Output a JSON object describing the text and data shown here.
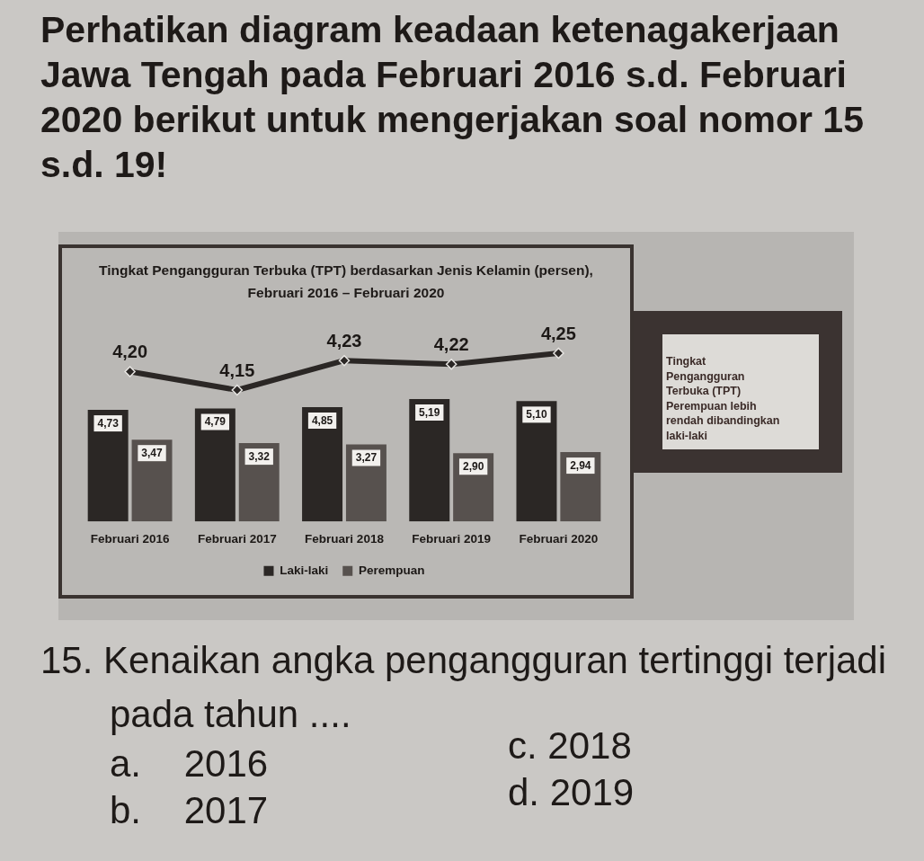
{
  "chart_data": [
    {
      "type": "line",
      "title": "Tingkat Pengangguran Terbuka (TPT) berdasarkan Jenis Kelamin (persen),",
      "subtitle": "Februari 2016 – Februari 2020",
      "categories": [
        null,
        null,
        null,
        null,
        null
      ],
      "values": [
        4.2,
        4.15,
        4.23,
        4.22,
        4.25
      ],
      "value_labels": [
        "4,20",
        "4,15",
        "4,23",
        "4,22",
        "4,25"
      ],
      "color": "#2b2725",
      "marker": "diamond",
      "tick_labels": false,
      "annotations": [
        "Perhatikan diagram keadaan ketenagakerjaan Jawa Tengah pada Februari 2016 s.d. Februari 2020 berikut untuk mengerjakan soal nomor 15 s.d. 19!",
        "Tingkat Pengangguran Terbuka (TPT) Perempuan lebih rendah dibandingkan laki-laki",
        "15. Kenaikan angka pengangguran tertinggi terjadi pada tahun ....",
        "a. 2016",
        "b. 2017",
        "c. 2018",
        "d. 2019"
      ]
    },
    {
      "type": "bar",
      "categories": [
        "Februari 2016",
        "Februari 2017",
        "Februari 2018",
        "Februari 2019",
        "Februari 2020"
      ],
      "series": [
        {
          "name": "Laki-laki",
          "color": "#2b2725",
          "values": [
            4.73,
            4.79,
            4.85,
            5.19,
            5.1
          ],
          "value_labels": [
            "4,73",
            "4,79",
            "4,85",
            "5,19",
            "5,10"
          ]
        },
        {
          "name": "Perempuan",
          "color": "#57514e",
          "values": [
            3.47,
            3.32,
            3.27,
            2.9,
            2.94
          ],
          "value_labels": [
            "3,47",
            "3,32",
            "3,27",
            "2,90",
            "2,94"
          ]
        }
      ],
      "legend": "bottom",
      "tick_labels": "x"
    }
  ]
}
